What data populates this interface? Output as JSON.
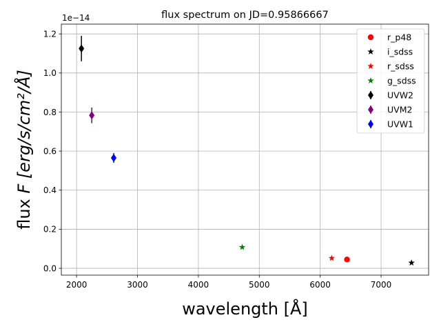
{
  "chart_data": {
    "type": "scatter",
    "title": "flux spectrum on JD=0.95866667",
    "xlabel": "wavelength [Å]",
    "ylabel_text": "flux ",
    "ylabel_math": "F [erg/s/cm²/Å]",
    "y_offset_text": "1e−14",
    "xlim": [
      1750,
      7780
    ],
    "ylim": [
      -0.035,
      1.25
    ],
    "x_ticks": [
      2000,
      3000,
      4000,
      5000,
      6000,
      7000
    ],
    "x_tick_labels": [
      "2000",
      "3000",
      "4000",
      "5000",
      "6000",
      "7000"
    ],
    "y_ticks": [
      0.0,
      0.2,
      0.4,
      0.6,
      0.8,
      1.0,
      1.2
    ],
    "y_tick_labels": [
      "0.0",
      "0.2",
      "0.4",
      "0.6",
      "0.8",
      "1.0",
      "1.2"
    ],
    "grid": true,
    "legend_position": "top-right",
    "series": [
      {
        "name": "r_p48",
        "marker": "circle",
        "color": "#ff0000",
        "points": [
          {
            "x": 6440,
            "y": 0.045,
            "err": 0.0
          }
        ]
      },
      {
        "name": "i_sdss",
        "marker": "star",
        "color": "#000000",
        "points": [
          {
            "x": 7500,
            "y": 0.028,
            "err": 0.0
          }
        ]
      },
      {
        "name": "r_sdss",
        "marker": "star",
        "color": "#ff0000",
        "points": [
          {
            "x": 6190,
            "y": 0.052,
            "err": 0.0
          }
        ]
      },
      {
        "name": "g_sdss",
        "marker": "star",
        "color": "#008000",
        "points": [
          {
            "x": 4720,
            "y": 0.108,
            "err": 0.0
          }
        ]
      },
      {
        "name": "UVW2",
        "marker": "diamond",
        "color": "#000000",
        "points": [
          {
            "x": 2080,
            "y": 1.125,
            "err": 0.065
          }
        ]
      },
      {
        "name": "UVM2",
        "marker": "diamond",
        "color": "#800080",
        "points": [
          {
            "x": 2250,
            "y": 0.783,
            "err": 0.04
          }
        ]
      },
      {
        "name": "UVW1",
        "marker": "diamond",
        "color": "#0000ff",
        "points": [
          {
            "x": 2610,
            "y": 0.565,
            "err": 0.025
          }
        ]
      }
    ]
  }
}
